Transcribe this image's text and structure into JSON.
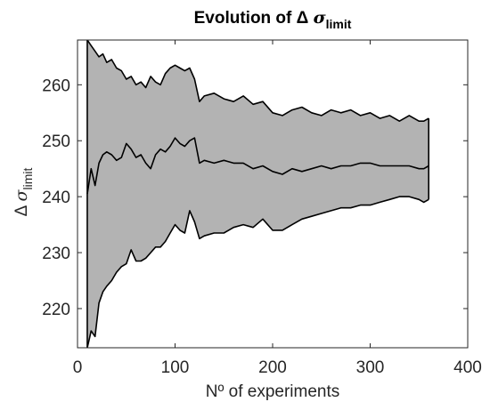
{
  "chart_data": {
    "type": "area",
    "title": {
      "prefix": "Evolution of Δ ",
      "symbol": "σ",
      "subscript": "limit"
    },
    "xlabel": "Nº of experiments",
    "ylabel": {
      "prefix": "Δ ",
      "symbol": "σ",
      "subscript": "limit"
    },
    "xlim": [
      0,
      400
    ],
    "ylim": [
      213,
      268
    ],
    "xticks": [
      0,
      100,
      200,
      300,
      400
    ],
    "yticks": [
      220,
      230,
      240,
      250,
      260
    ],
    "grid": false,
    "legend": "none",
    "colors": {
      "band_fill": "#b3b3b3",
      "line": "#000000",
      "axis": "#262626",
      "background": "#ffffff"
    },
    "x": [
      10,
      14,
      18,
      22,
      26,
      30,
      35,
      40,
      45,
      50,
      55,
      60,
      65,
      70,
      75,
      80,
      85,
      90,
      95,
      100,
      105,
      110,
      115,
      120,
      125,
      130,
      140,
      150,
      160,
      170,
      180,
      190,
      200,
      210,
      220,
      230,
      240,
      250,
      260,
      270,
      280,
      290,
      300,
      310,
      320,
      330,
      340,
      350,
      355,
      360
    ],
    "series": [
      {
        "name": "upper",
        "values": [
          268,
          267,
          266,
          265,
          265.5,
          264,
          264.5,
          263,
          262.5,
          261,
          261.5,
          260,
          260.5,
          259.5,
          261.5,
          260.5,
          260,
          262,
          263,
          263.5,
          263,
          262.5,
          263,
          261,
          257,
          258,
          258.5,
          257.5,
          257,
          258,
          256.5,
          257,
          255,
          254.5,
          255.5,
          256,
          255,
          254.5,
          255.5,
          255,
          255.5,
          254.5,
          255,
          254,
          254.5,
          253.5,
          254.5,
          253.5,
          253.5,
          254
        ]
      },
      {
        "name": "mean",
        "values": [
          240.5,
          245,
          242,
          246,
          247.5,
          248,
          247.5,
          246.5,
          247,
          249.5,
          248.5,
          247,
          247.5,
          246,
          245,
          247.5,
          248.5,
          248,
          249,
          250.5,
          249.5,
          249,
          250,
          250.5,
          246,
          246.5,
          246,
          246.5,
          246,
          246,
          245,
          245.5,
          244.5,
          244,
          245,
          244.5,
          245,
          245.5,
          245,
          245.5,
          245.5,
          246,
          246,
          245.5,
          245.5,
          245.5,
          245.5,
          245,
          245,
          245.5
        ]
      },
      {
        "name": "lower",
        "values": [
          213,
          216,
          215,
          221,
          223,
          224,
          225,
          226.5,
          227.5,
          228,
          230.5,
          228.5,
          228.5,
          229,
          230,
          231,
          231,
          232,
          233.5,
          235,
          234,
          233.5,
          237.5,
          235.5,
          232.5,
          233,
          233.5,
          233.5,
          234.5,
          235,
          234.5,
          236,
          234,
          234,
          235,
          236,
          236.5,
          237,
          237.5,
          238,
          238,
          238.5,
          238.5,
          239,
          239.5,
          240,
          240,
          239.5,
          239,
          239.5
        ]
      }
    ]
  }
}
